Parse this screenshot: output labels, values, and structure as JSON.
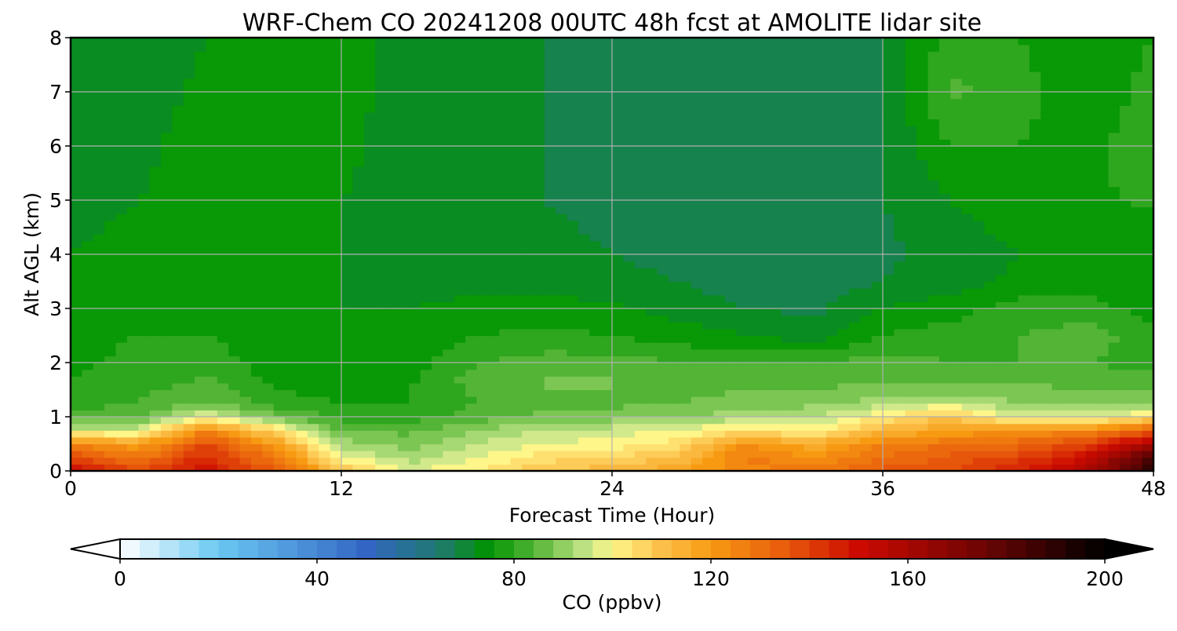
{
  "chart_data": {
    "type": "heatmap",
    "title": "WRF-Chem CO  20241208 00UTC 48h fcst at AMOLITE lidar site",
    "xlabel": "Forecast Time (Hour)",
    "ylabel": "Alt AGL (km)",
    "xlim": [
      0,
      48
    ],
    "ylim": [
      0,
      8
    ],
    "x_ticks": [
      0,
      12,
      24,
      36,
      48
    ],
    "y_ticks": [
      0,
      1,
      2,
      3,
      4,
      5,
      6,
      7,
      8
    ],
    "grid": true,
    "x": [
      0,
      3,
      6,
      9,
      12,
      15,
      18,
      21,
      24,
      27,
      30,
      33,
      36,
      39,
      42,
      45,
      48
    ],
    "y": [
      0,
      0.25,
      0.5,
      0.75,
      1.0,
      1.25,
      1.5,
      1.75,
      2.0,
      2.5,
      3.0,
      3.5,
      4.0,
      5.0,
      6.0,
      7.0,
      8.0
    ],
    "z": [
      [
        150,
        140,
        148,
        135,
        110,
        98,
        102,
        110,
        112,
        118,
        125,
        128,
        135,
        138,
        145,
        158,
        190
      ],
      [
        140,
        128,
        145,
        128,
        100,
        92,
        98,
        104,
        106,
        110,
        128,
        122,
        130,
        135,
        140,
        150,
        185
      ],
      [
        125,
        118,
        138,
        120,
        92,
        88,
        94,
        98,
        100,
        104,
        122,
        115,
        126,
        130,
        132,
        140,
        160
      ],
      [
        95,
        96,
        125,
        105,
        86,
        85,
        90,
        94,
        96,
        98,
        104,
        100,
        112,
        118,
        122,
        124,
        135
      ],
      [
        84,
        86,
        98,
        88,
        80,
        80,
        84,
        87,
        88,
        90,
        92,
        94,
        102,
        110,
        96,
        96,
        104
      ],
      [
        80,
        82,
        86,
        80,
        78,
        78,
        82,
        84,
        85,
        86,
        88,
        89,
        92,
        96,
        90,
        88,
        90
      ],
      [
        79,
        81,
        84,
        78,
        77,
        78,
        83,
        86,
        86,
        85,
        86,
        86,
        88,
        88,
        87,
        86,
        86
      ],
      [
        78,
        80,
        82,
        77,
        76,
        77,
        84,
        86,
        86,
        84,
        84,
        84,
        85,
        85,
        85,
        84,
        84
      ],
      [
        77,
        79,
        80,
        76,
        76,
        76,
        82,
        84,
        84,
        82,
        82,
        82,
        84,
        82,
        82,
        82,
        80
      ],
      [
        77,
        78,
        78,
        76,
        75,
        75,
        78,
        79,
        78,
        76,
        74,
        72,
        78,
        80,
        82,
        84,
        80
      ],
      [
        76,
        77,
        77,
        76,
        74,
        74,
        75,
        76,
        75,
        72,
        70,
        69,
        74,
        76,
        80,
        80,
        76
      ],
      [
        75,
        76,
        76,
        76,
        74,
        73,
        73,
        72,
        71,
        70,
        68,
        68,
        70,
        72,
        75,
        76,
        74
      ],
      [
        74,
        75,
        76,
        76,
        74,
        73,
        72,
        71,
        70,
        69,
        68,
        68,
        69,
        72,
        74,
        75,
        74
      ],
      [
        73,
        74,
        76,
        76,
        74,
        72,
        71,
        70,
        69,
        68,
        68,
        68,
        70,
        74,
        76,
        77,
        79
      ],
      [
        72,
        73,
        76,
        77,
        75,
        72,
        71,
        70,
        69,
        68,
        68,
        68,
        70,
        78,
        78,
        76,
        82
      ],
      [
        71,
        72,
        75,
        77,
        75,
        73,
        71,
        70,
        69,
        69,
        68,
        68,
        70,
        83,
        80,
        74,
        80
      ],
      [
        70,
        71,
        74,
        77,
        75,
        73,
        71,
        70,
        69,
        69,
        69,
        68,
        70,
        80,
        78,
        74,
        78
      ]
    ],
    "colorbar": {
      "label": "CO  (ppbv)",
      "vmin": 0,
      "vmax": 200,
      "ticks": [
        0,
        40,
        80,
        120,
        160,
        200
      ],
      "extend": "both",
      "colors": [
        {
          "v": 0,
          "c": "#ffffff"
        },
        {
          "v": 20,
          "c": "#6ac8f2"
        },
        {
          "v": 50,
          "c": "#3366c4"
        },
        {
          "v": 65,
          "c": "#1f7a6e"
        },
        {
          "v": 75,
          "c": "#009400"
        },
        {
          "v": 85,
          "c": "#5cb83c"
        },
        {
          "v": 95,
          "c": "#c5e68a"
        },
        {
          "v": 100,
          "c": "#fff68a"
        },
        {
          "v": 110,
          "c": "#fcc04a"
        },
        {
          "v": 120,
          "c": "#f79a12"
        },
        {
          "v": 135,
          "c": "#e85b0c"
        },
        {
          "v": 150,
          "c": "#cc0a00"
        },
        {
          "v": 175,
          "c": "#6e0404"
        },
        {
          "v": 200,
          "c": "#000000"
        }
      ]
    }
  }
}
